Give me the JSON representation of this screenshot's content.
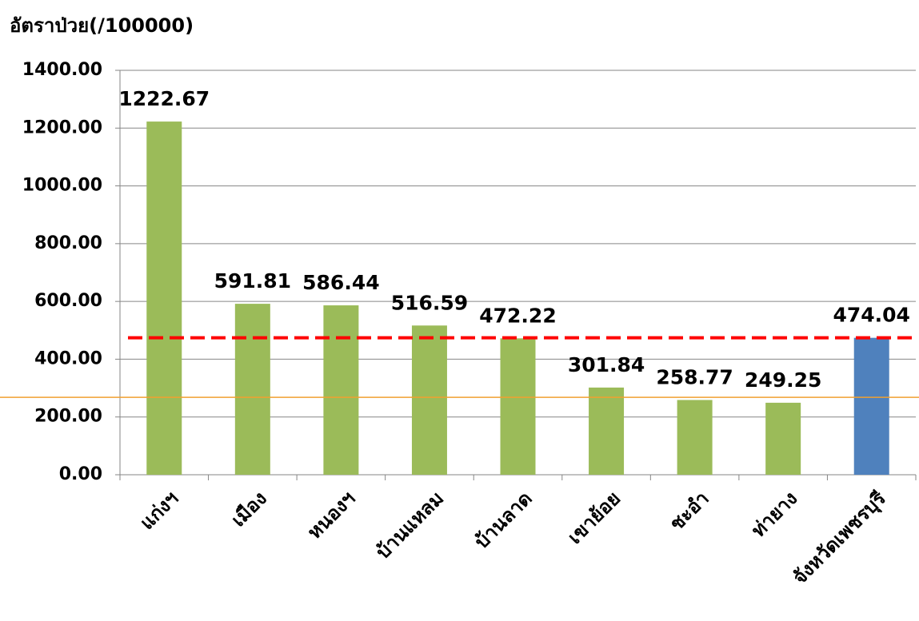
{
  "chart_data": {
    "type": "bar",
    "y_axis_label": "อัตราป่วย(/100000)",
    "categories": [
      "แก่งฯ",
      "เมือง",
      "หนองฯ",
      "บ้านแหลม",
      "บ้านลาด",
      "เขาย้อย",
      "ชะอำ",
      "ท่ายาง",
      "จังหวัดเพชรบุรี"
    ],
    "values": [
      1222.67,
      591.81,
      586.44,
      516.59,
      472.22,
      301.84,
      258.77,
      249.25,
      474.04
    ],
    "colors": [
      "#9bbb59",
      "#9bbb59",
      "#9bbb59",
      "#9bbb59",
      "#9bbb59",
      "#9bbb59",
      "#9bbb59",
      "#9bbb59",
      "#4f81bd"
    ],
    "ylim": [
      0,
      1400
    ],
    "yticks": [
      {
        "value": 0,
        "label": "0.00"
      },
      {
        "value": 200,
        "label": "200.00"
      },
      {
        "value": 400,
        "label": "400.00"
      },
      {
        "value": 600,
        "label": "600.00"
      },
      {
        "value": 800,
        "label": "800.00"
      },
      {
        "value": 1000,
        "label": "1000.00"
      },
      {
        "value": 1200,
        "label": "1200.00"
      },
      {
        "value": 1400,
        "label": "1400.00"
      }
    ],
    "grid": true,
    "reference_lines": [
      {
        "value": 474.04,
        "color": "#ff0000",
        "style": "dashed"
      },
      {
        "value": 268,
        "color": "#f0a030",
        "style": "solid"
      }
    ]
  }
}
